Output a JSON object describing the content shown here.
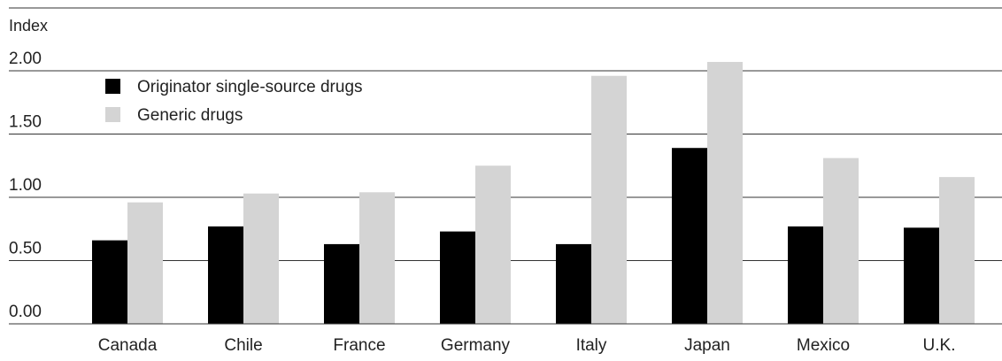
{
  "chart_data": {
    "type": "bar",
    "ylabel": "Index",
    "yticks": [
      "0.00",
      "0.50",
      "1.00",
      "1.50",
      "2.00"
    ],
    "ylim": [
      0,
      2.0
    ],
    "grid": true,
    "legend_position": "top-left",
    "categories": [
      "Canada",
      "Chile",
      "France",
      "Germany",
      "Italy",
      "Japan",
      "Mexico",
      "U.K."
    ],
    "series": [
      {
        "name": "Originator single-source drugs",
        "color": "#000000",
        "values": [
          0.66,
          0.77,
          0.63,
          0.73,
          0.63,
          1.39,
          0.77,
          0.76
        ]
      },
      {
        "name": "Generic drugs",
        "color": "#d4d4d4",
        "values": [
          0.96,
          1.03,
          1.04,
          1.25,
          1.96,
          2.07,
          1.31,
          1.16
        ]
      }
    ]
  }
}
